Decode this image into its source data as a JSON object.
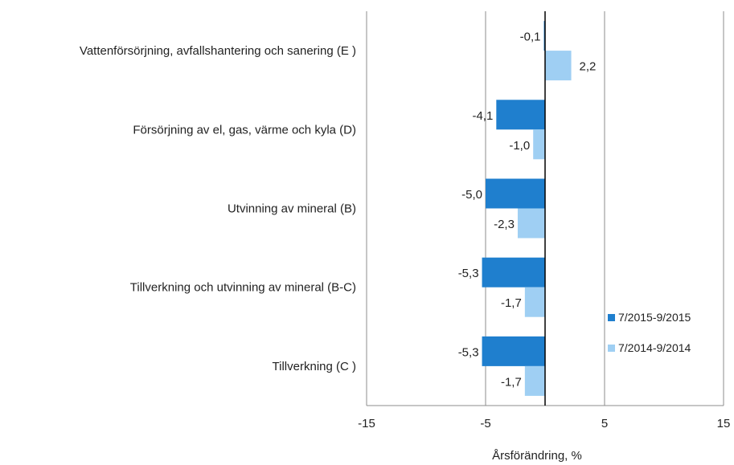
{
  "chart_data": {
    "type": "bar",
    "orientation": "horizontal",
    "categories": [
      "Vattenförsörjning, avfallshantering och sanering (E )",
      "Försörjning av el, gas, värme och kyla (D)",
      "Utvinning av mineral  (B)",
      "Tillverkning och utvinning av mineral (B-C)",
      "Tillverkning (C )"
    ],
    "series": [
      {
        "name": "7/2015-9/2015",
        "color": "#1f7fce",
        "values": [
          -0.1,
          -4.1,
          -5.0,
          -5.3,
          -5.3
        ],
        "labels": [
          "-0,1",
          "-4,1",
          "-5,0",
          "-5,3",
          "-5,3"
        ]
      },
      {
        "name": "7/2014-9/2014",
        "color": "#9fcff3",
        "values": [
          2.2,
          -1.0,
          -2.3,
          -1.7,
          -1.7
        ],
        "labels": [
          "2,2",
          "-1,0",
          "-2,3",
          "-1,7",
          "-1,7"
        ]
      }
    ],
    "xlim": [
      -15,
      15
    ],
    "xticks": [
      -15,
      -5,
      5,
      15
    ],
    "xtick_labels": [
      "-15",
      "-5",
      "5",
      "15"
    ],
    "xlabel": "Årsförändring, %",
    "ylabel": "",
    "title": "",
    "grid": true,
    "legend_position": "bottom-right"
  }
}
